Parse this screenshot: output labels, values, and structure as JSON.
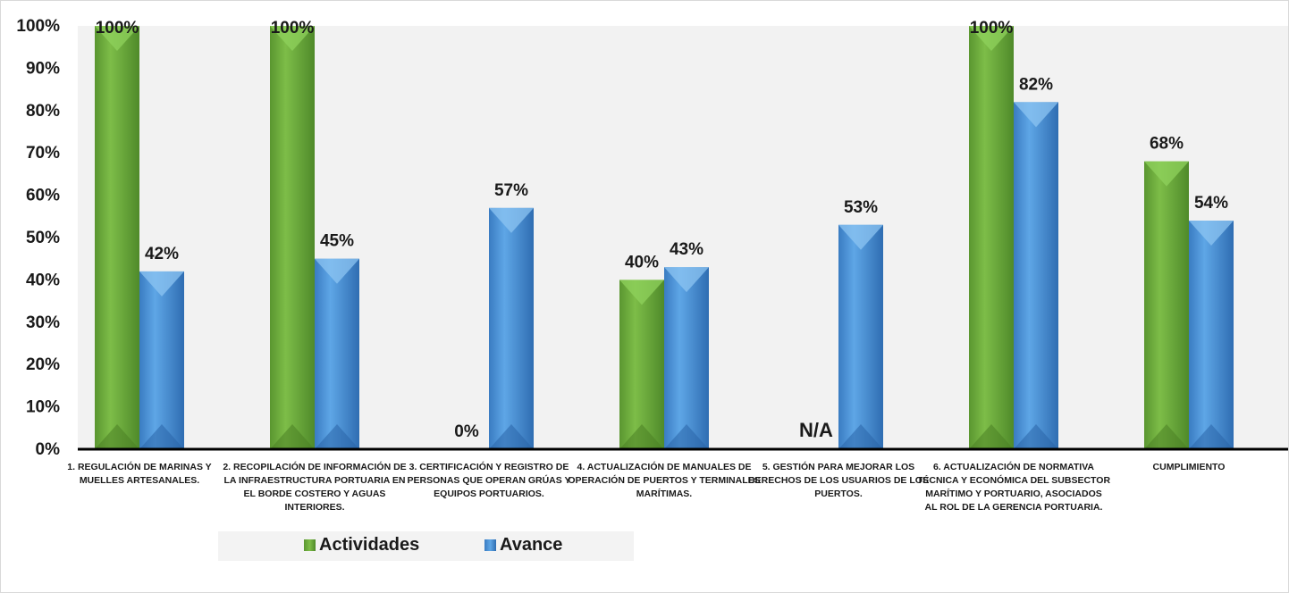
{
  "chart_data": {
    "type": "bar",
    "categories": [
      [
        "1. REGULACIÓN DE MARINAS Y",
        "MUELLES ARTESANALES."
      ],
      [
        "2. RECOPILACIÓN DE INFORMACIÓN DE",
        "LA INFRAESTRUCTURA PORTUARIA EN",
        "EL BORDE COSTERO Y AGUAS",
        "INTERIORES."
      ],
      [
        "3. CERTIFICACIÓN Y REGISTRO DE",
        "PERSONAS QUE OPERAN GRÚAS Y",
        "EQUIPOS PORTUARIOS."
      ],
      [
        "4. ACTUALIZACIÓN DE MANUALES DE",
        "OPERACIÓN DE PUERTOS Y TERMINALES",
        "MARÍTIMAS."
      ],
      [
        "5. GESTIÓN PARA MEJORAR LOS",
        "DERECHOS DE LOS USUARIOS DE LOS",
        "PUERTOS."
      ],
      [
        "6. ACTUALIZACIÓN DE NORMATIVA",
        "TÉCNICA Y ECONÓMICA DEL SUBSECTOR",
        "MARÍTIMO Y PORTUARIO, ASOCIADOS",
        "AL ROL DE LA GERENCIA PORTUARIA."
      ],
      [
        "CUMPLIMIENTO"
      ]
    ],
    "series": [
      {
        "name": "Actividades",
        "values": [
          100,
          100,
          0,
          40,
          null,
          100,
          68
        ],
        "labels": [
          "100%",
          "100%",
          "0%",
          "40%",
          "N/A",
          "100%",
          "68%"
        ],
        "color": "#6aa63a"
      },
      {
        "name": "Avance",
        "values": [
          42,
          45,
          57,
          43,
          53,
          82,
          54
        ],
        "labels": [
          "42%",
          "45%",
          "57%",
          "43%",
          "53%",
          "82%",
          "54%"
        ],
        "color": "#4a8fd4"
      }
    ],
    "yticks": [
      "0%",
      "10%",
      "20%",
      "30%",
      "40%",
      "50%",
      "60%",
      "70%",
      "80%",
      "90%",
      "100%"
    ],
    "ylim": [
      0,
      100
    ],
    "grid": false,
    "legend_position": "bottom"
  }
}
